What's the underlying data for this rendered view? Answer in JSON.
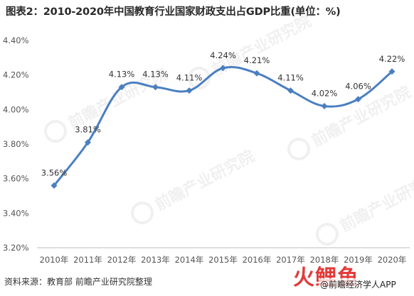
{
  "title": "图表2：2010-2020年中国教育行业国家财政支出占GDP比重(单位：%)",
  "source": "资料来源：教育部 前瞻产业研究院整理",
  "watermark_text": "前瞻产业研究院",
  "logo": {
    "big": "火鲤鱼",
    "small": "@前瞻经济学人APP"
  },
  "colors": {
    "line": "#4a7fc1",
    "axis_text": "#555555",
    "title": "#2a2a2a",
    "logo": "#e23b3b"
  },
  "chart_data": {
    "type": "line",
    "title": "图表2：2010-2020年中国教育行业国家财政支出占GDP比重(单位：%)",
    "xlabel": "",
    "ylabel": "",
    "ylim": [
      3.2,
      4.4
    ],
    "grid": false,
    "legend": "none",
    "y_ticks": [
      "4.40%",
      "4.20%",
      "4.00%",
      "3.80%",
      "3.60%",
      "3.40%",
      "3.20%"
    ],
    "y_tick_values": [
      4.4,
      4.2,
      4.0,
      3.8,
      3.6,
      3.4,
      3.2
    ],
    "categories": [
      "2010年",
      "2011年",
      "2012年",
      "2013年",
      "2014年",
      "2015年",
      "2016年",
      "2017年",
      "2018年",
      "2019年",
      "2020年"
    ],
    "values": [
      3.56,
      3.81,
      4.13,
      4.13,
      4.11,
      4.24,
      4.21,
      4.11,
      4.02,
      4.06,
      4.22
    ],
    "data_labels": [
      "3.56%",
      "3.81%",
      "4.13%",
      "4.13%",
      "4.11%",
      "4.24%",
      "4.21%",
      "4.11%",
      "4.02%",
      "4.06%",
      "4.22%"
    ]
  }
}
